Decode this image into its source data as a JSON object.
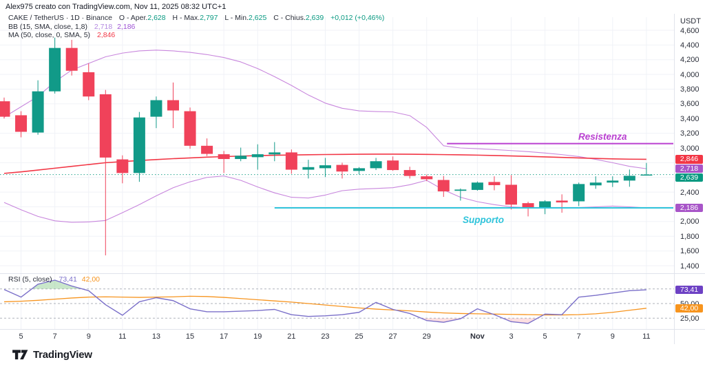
{
  "attribution": "Alex975 creato con TradingView.com, Nov 11, 2025 08:32 UTC+1",
  "logo_text": "TradingView",
  "legend": {
    "title": "CAKE / TetherUS · 1D · Binance",
    "ohlc": {
      "o_label": "O - Aper.",
      "o": "2,628",
      "h_label": "H - Max.",
      "h": "2,797",
      "l_label": "L - Min.",
      "l": "2,625",
      "c_label": "C - Chius.",
      "c": "2,639",
      "change": "+0,012 (+0,46%)"
    },
    "bb": {
      "name": "BB (15, SMA, close, 1,8)",
      "upper": "2,718",
      "lower": "2,186"
    },
    "ma": {
      "name": "MA (50, close, 0, SMA, 5)",
      "value": "2,846"
    }
  },
  "rsi": {
    "name": "RSI (5, close)",
    "value": "73,41",
    "ma_value": "42,00",
    "tick_labels": [
      {
        "label": "50,00",
        "value": 50
      },
      {
        "label": "25,00",
        "value": 25
      }
    ]
  },
  "axis": {
    "currency": "USDT",
    "price_ticks": [
      {
        "label": "4,600",
        "price": 4600
      },
      {
        "label": "4,400",
        "price": 4400
      },
      {
        "label": "4,200",
        "price": 4200
      },
      {
        "label": "4,000",
        "price": 4000
      },
      {
        "label": "3,800",
        "price": 3800
      },
      {
        "label": "3,600",
        "price": 3600
      },
      {
        "label": "3,400",
        "price": 3400
      },
      {
        "label": "3,200",
        "price": 3200
      },
      {
        "label": "3,000",
        "price": 3000
      },
      {
        "label": "2,400",
        "price": 2400
      },
      {
        "label": "2,000",
        "price": 2000
      },
      {
        "label": "1,800",
        "price": 1800
      },
      {
        "label": "1,600",
        "price": 1600
      },
      {
        "label": "1,400",
        "price": 1400
      }
    ],
    "time_ticks": [
      {
        "label": "5",
        "i": 1
      },
      {
        "label": "7",
        "i": 3
      },
      {
        "label": "9",
        "i": 5
      },
      {
        "label": "11",
        "i": 7
      },
      {
        "label": "13",
        "i": 9
      },
      {
        "label": "15",
        "i": 11
      },
      {
        "label": "17",
        "i": 13
      },
      {
        "label": "19",
        "i": 15
      },
      {
        "label": "21",
        "i": 17
      },
      {
        "label": "23",
        "i": 19
      },
      {
        "label": "25",
        "i": 21
      },
      {
        "label": "27",
        "i": 23
      },
      {
        "label": "29",
        "i": 25
      },
      {
        "label": "Nov",
        "i": 28,
        "bold": true
      },
      {
        "label": "3",
        "i": 30
      },
      {
        "label": "5",
        "i": 32
      },
      {
        "label": "7",
        "i": 34
      },
      {
        "label": "9",
        "i": 36
      },
      {
        "label": "11",
        "i": 38
      }
    ]
  },
  "price_badges": [
    {
      "text": "2,846",
      "price": 2846,
      "color": "#f23645",
      "name": "ma-value-badge"
    },
    {
      "text": "2,718",
      "price": 2718,
      "color": "#a855c8",
      "name": "bb-upper-badge"
    },
    {
      "text": "2,639",
      "price": 2639,
      "color": "#089981",
      "name": "last-price-badge"
    },
    {
      "text": "2,186",
      "price": 2186,
      "color": "#a855c8",
      "name": "bb-lower-badge"
    }
  ],
  "rsi_badges": [
    {
      "text": "73,41",
      "value": 73.41,
      "color": "#6d41c4",
      "name": "rsi-value-badge"
    },
    {
      "text": "42,00",
      "value": 42,
      "color": "#f7941e",
      "name": "rsi-ma-badge"
    }
  ],
  "annotations": {
    "resistance": {
      "label": "Resistenza",
      "price": 3060,
      "x_from_index": 26.2,
      "color": "#b93fd0"
    },
    "support": {
      "label": "Supporto",
      "price": 2186,
      "x_from_index": 16,
      "color": "#2fc4db"
    }
  },
  "colors": {
    "up": "#119a88",
    "down": "#f0425a",
    "ma": "#f23645",
    "bb": "#c886dd",
    "resistance": "#b93fd0",
    "support": "#2fc4db",
    "rsi_line": "#7a6fc9",
    "rsi_ma_line": "#f7941e",
    "close_dotted": "#089981",
    "grid": "#f0f2f7",
    "separator": "#e0e3eb",
    "rsi_band_dash": "#9aa0aa",
    "overbought_fill": "rgba(76,175,80,0.30)",
    "oversold_fill": "rgba(242,54,69,0.16)"
  },
  "chart_data": {
    "type": "candlestick",
    "title": "CAKE / TetherUS · 1D · Binance",
    "ylabel": "USDT",
    "price_range": [
      1400,
      4600
    ],
    "last_bar": {
      "open": 2.628,
      "high": 2.797,
      "low": 2.625,
      "close": 2.639,
      "change": "+0,012 (+0,46%)"
    },
    "dates": [
      "Oct 4",
      "Oct 5",
      "Oct 6",
      "Oct 7",
      "Oct 8",
      "Oct 9",
      "Oct 10",
      "Oct 11",
      "Oct 12",
      "Oct 13",
      "Oct 14",
      "Oct 15",
      "Oct 16",
      "Oct 17",
      "Oct 18",
      "Oct 19",
      "Oct 20",
      "Oct 21",
      "Oct 22",
      "Oct 23",
      "Oct 24",
      "Oct 25",
      "Oct 26",
      "Oct 27",
      "Oct 28",
      "Oct 29",
      "Oct 30",
      "Oct 31",
      "Nov 1",
      "Nov 2",
      "Nov 3",
      "Nov 4",
      "Nov 5",
      "Nov 6",
      "Nov 7",
      "Nov 8",
      "Nov 9",
      "Nov 10",
      "Nov 11"
    ],
    "candles_ohlc": [
      [
        3635,
        3685,
        3400,
        3425
      ],
      [
        3445,
        3500,
        3145,
        3220
      ],
      [
        3210,
        3920,
        3180,
        3770
      ],
      [
        3770,
        4500,
        3740,
        4360
      ],
      [
        4360,
        4470,
        3985,
        4050
      ],
      [
        4030,
        4150,
        3650,
        3700
      ],
      [
        3730,
        3790,
        1540,
        2870
      ],
      [
        2845,
        2900,
        2520,
        2660
      ],
      [
        2660,
        3490,
        2540,
        3415
      ],
      [
        3425,
        3700,
        3270,
        3650
      ],
      [
        3650,
        3890,
        3270,
        3510
      ],
      [
        3500,
        3550,
        2990,
        3030
      ],
      [
        3030,
        3130,
        2890,
        2920
      ],
      [
        2915,
        2960,
        2660,
        2850
      ],
      [
        2850,
        3005,
        2820,
        2895
      ],
      [
        2875,
        3050,
        2705,
        2915
      ],
      [
        2913,
        3080,
        2820,
        2940
      ],
      [
        2940,
        2980,
        2650,
        2705
      ],
      [
        2705,
        2840,
        2585,
        2740
      ],
      [
        2725,
        2865,
        2605,
        2765
      ],
      [
        2770,
        2800,
        2585,
        2680
      ],
      [
        2688,
        2740,
        2640,
        2725
      ],
      [
        2725,
        2865,
        2700,
        2820
      ],
      [
        2830,
        2885,
        2690,
        2700
      ],
      [
        2700,
        2745,
        2585,
        2620
      ],
      [
        2615,
        2640,
        2550,
        2575
      ],
      [
        2565,
        2620,
        2335,
        2410
      ],
      [
        2418,
        2450,
        2285,
        2435
      ],
      [
        2430,
        2545,
        2420,
        2530
      ],
      [
        2538,
        2615,
        2425,
        2495
      ],
      [
        2500,
        2630,
        2165,
        2230
      ],
      [
        2250,
        2270,
        2070,
        2195
      ],
      [
        2185,
        2290,
        2100,
        2275
      ],
      [
        2285,
        2370,
        2120,
        2260
      ],
      [
        2275,
        2530,
        2210,
        2510
      ],
      [
        2492,
        2615,
        2445,
        2530
      ],
      [
        2530,
        2615,
        2470,
        2557
      ],
      [
        2557,
        2707,
        2473,
        2622
      ],
      [
        2628,
        2797,
        2625,
        2639
      ]
    ],
    "ma50": [
      2655,
      2675,
      2700,
      2725,
      2750,
      2775,
      2800,
      2815,
      2830,
      2843,
      2855,
      2865,
      2875,
      2883,
      2890,
      2896,
      2901,
      2905,
      2908,
      2911,
      2913,
      2915,
      2916,
      2916,
      2915,
      2913,
      2910,
      2907,
      2903,
      2898,
      2892,
      2886,
      2879,
      2872,
      2865,
      2858,
      2852,
      2848,
      2846
    ],
    "bb_upper": [
      3420,
      3560,
      3700,
      3900,
      4060,
      4150,
      4240,
      4290,
      4320,
      4330,
      4320,
      4300,
      4270,
      4230,
      4170,
      4080,
      3970,
      3850,
      3720,
      3610,
      3540,
      3505,
      3495,
      3490,
      3440,
      3280,
      3030,
      3000,
      2990,
      2978,
      2965,
      2950,
      2932,
      2910,
      2884,
      2845,
      2800,
      2750,
      2718
    ],
    "bb_lower": [
      2260,
      2160,
      2070,
      2010,
      1990,
      1995,
      2015,
      2120,
      2230,
      2350,
      2460,
      2540,
      2600,
      2620,
      2560,
      2470,
      2390,
      2330,
      2320,
      2360,
      2420,
      2440,
      2450,
      2460,
      2500,
      2560,
      2430,
      2330,
      2270,
      2230,
      2200,
      2188,
      2183,
      2183,
      2190,
      2200,
      2210,
      2200,
      2186
    ],
    "rsi_pane": {
      "type": "line",
      "bands": [
        75,
        50,
        25
      ],
      "rsi": [
        74,
        61,
        83,
        90,
        80,
        72,
        48,
        30,
        53,
        60,
        55,
        41,
        36,
        36,
        37,
        38,
        40,
        31,
        28,
        29,
        31,
        35,
        52,
        40,
        33,
        21,
        18,
        24,
        41,
        31,
        19,
        16,
        32,
        31,
        61,
        64,
        68,
        72,
        73.41
      ],
      "rsi_ma": [
        53,
        54,
        55.5,
        57.5,
        59.5,
        61,
        61.5,
        61,
        60.5,
        61,
        61.5,
        62.5,
        62,
        60.5,
        58.5,
        56.5,
        54.5,
        52.5,
        50,
        47.5,
        45,
        42.5,
        40.5,
        39,
        37.5,
        35.5,
        34,
        33,
        32.5,
        32,
        31.5,
        31,
        30.5,
        30.5,
        31,
        32.5,
        35,
        38.5,
        42
      ]
    }
  }
}
